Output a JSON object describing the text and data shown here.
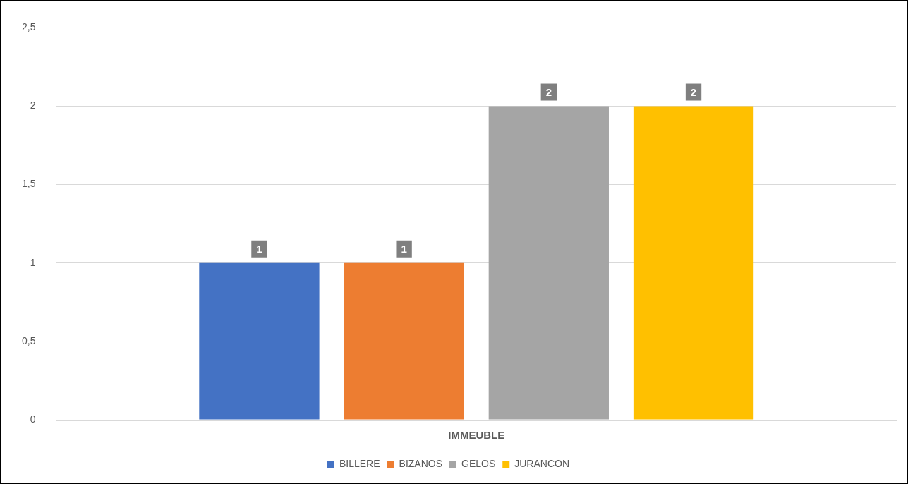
{
  "chart_data": {
    "type": "bar",
    "categories": [
      "IMMEUBLE"
    ],
    "series": [
      {
        "name": "BILLERE",
        "color": "#4472c4",
        "values": [
          1
        ]
      },
      {
        "name": "BIZANOS",
        "color": "#ed7d31",
        "values": [
          1
        ]
      },
      {
        "name": "GELOS",
        "color": "#a5a5a5",
        "values": [
          2
        ]
      },
      {
        "name": "JURANCON",
        "color": "#ffc000",
        "values": [
          2
        ]
      }
    ],
    "ylim": [
      0,
      2.5
    ],
    "yticks": [
      0,
      {
        "value": 0.5,
        "label": "0,5"
      },
      1,
      {
        "value": 1.5,
        "label": "1,5"
      },
      2,
      {
        "value": 2.5,
        "label": "2,5"
      }
    ],
    "grid": "y",
    "legend": "bottom",
    "data_labels": true
  }
}
